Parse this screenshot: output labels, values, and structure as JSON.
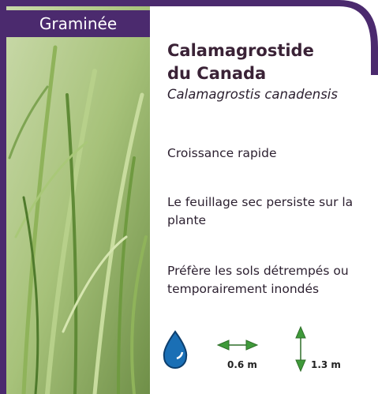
{
  "category": "Graminée",
  "name": {
    "common": [
      "Calamagrostide",
      "du Canada"
    ],
    "scientific": "Calamagrostis canadensis"
  },
  "traits": [
    "Croissance rapide",
    "Le feuillage sec persiste sur la plante",
    "Préfère les sols détrempés ou temporairement inondés"
  ],
  "dimensions": {
    "width": "0.6 m",
    "height": "1.3 m"
  }
}
